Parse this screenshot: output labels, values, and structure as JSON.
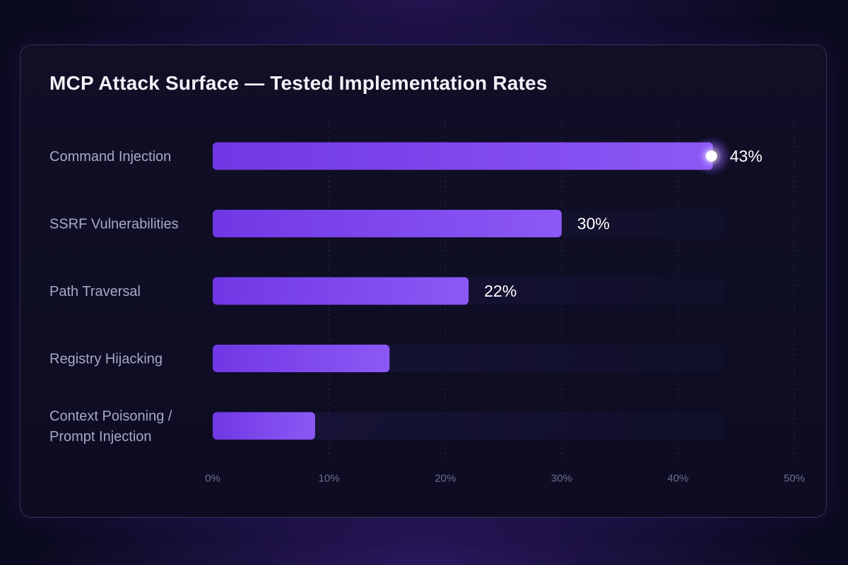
{
  "chart_data": {
    "type": "bar",
    "orientation": "horizontal",
    "title": "MCP Attack Surface — Tested Implementation Rates",
    "categories": [
      [
        "Command Injection"
      ],
      [
        "SSRF Vulnerabilities"
      ],
      [
        "Path Traversal"
      ],
      [
        "Registry Hijacking"
      ],
      [
        "Context Poisoning /",
        "Prompt Injection"
      ]
    ],
    "values": [
      43,
      30,
      22,
      15.2,
      8.8
    ],
    "value_labels": [
      "43%",
      "30%",
      "22%",
      "",
      ""
    ],
    "x_ticks": [
      0,
      10,
      20,
      30,
      40,
      50
    ],
    "x_tick_labels": [
      "0%",
      "10%",
      "20%",
      "30%",
      "40%",
      "50%"
    ],
    "xlim": [
      0,
      50
    ],
    "grid": "vertical dotted",
    "highlight": "glow marker at end of top bar",
    "colors": {
      "bar": "#7b44ea",
      "bar_light": "#8c58f5",
      "track": "#141233",
      "grid": "#2a2a48",
      "background": "#0a0a1e"
    }
  }
}
